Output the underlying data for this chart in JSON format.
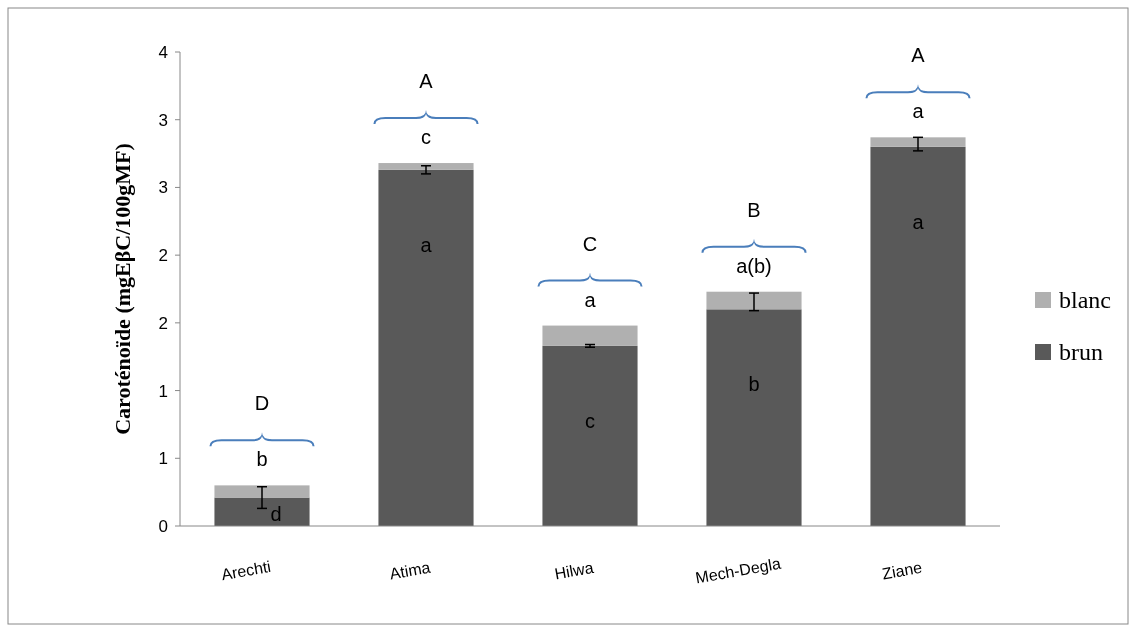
{
  "chart_data": {
    "type": "bar",
    "stacked": true,
    "ylabel": "Caroténoïde (mgEβC/100gMF)",
    "categories": [
      "Arechti",
      "Atima",
      "Hilwa",
      "Mech-Degla",
      "Ziane"
    ],
    "series": [
      {
        "name": "brun",
        "color": "#595959",
        "values": [
          0.21,
          2.63,
          1.33,
          1.6,
          2.8
        ],
        "errors": [
          [
            0.13,
            0.29
          ],
          [
            2.6,
            2.66
          ],
          [
            1.32,
            1.34
          ],
          [
            1.59,
            1.72
          ],
          [
            2.77,
            2.87
          ]
        ]
      },
      {
        "name": "blanc",
        "color": "#b0b0b0",
        "values": [
          0.09,
          0.05,
          0.15,
          0.13,
          0.07
        ]
      }
    ],
    "ylim": [
      0,
      3.5
    ],
    "yticks": [
      0,
      {
        "value": 0.5,
        "label": "1"
      },
      1,
      {
        "value": 1.5,
        "label": "2"
      },
      2,
      {
        "value": 2.5,
        "label": "3"
      },
      3,
      {
        "value": 3.5,
        "label": "4"
      }
    ],
    "legend": "right",
    "annotations": [
      "D",
      "b",
      "d",
      "A",
      "c",
      "a",
      "C",
      "a",
      "c",
      "B",
      "a(b)",
      "b",
      "A",
      "a",
      "a"
    ]
  }
}
